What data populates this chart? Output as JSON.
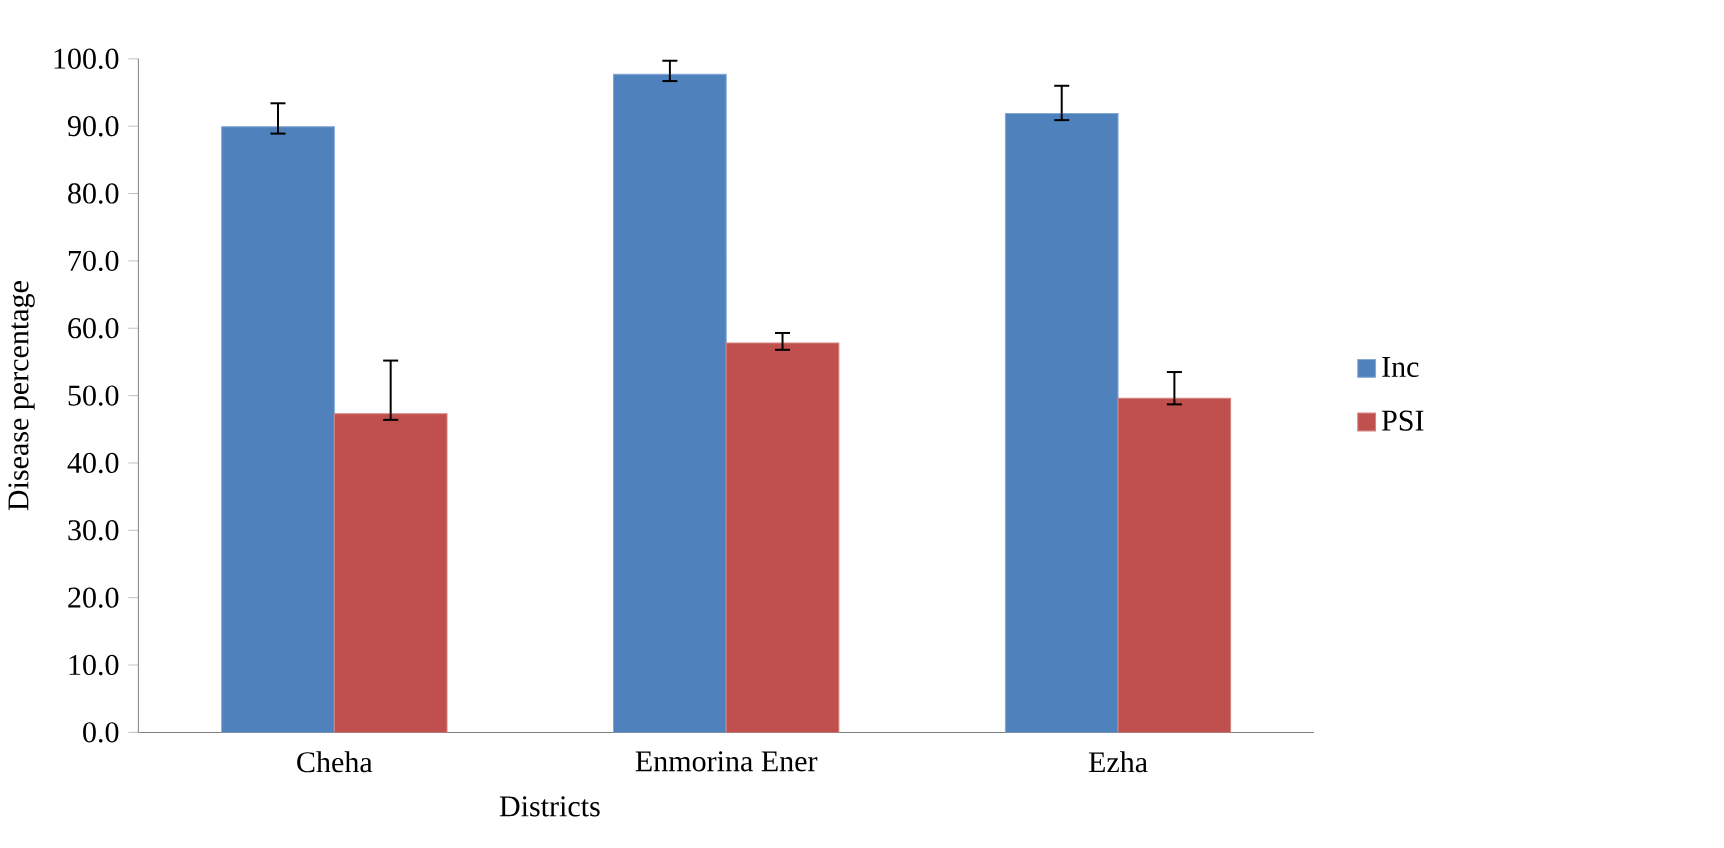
{
  "chart_data": {
    "type": "bar",
    "xlabel": "Districts",
    "ylabel": "Disease percentage",
    "categories": [
      "Cheha",
      "Enmorina Ener",
      "Ezha"
    ],
    "series": [
      {
        "name": "Inc",
        "color": "#4f81bd",
        "values": [
          89.9,
          97.7,
          91.9
        ],
        "errors": [
          [
            88.9,
            93.4
          ],
          [
            96.7,
            99.7
          ],
          [
            90.9,
            96.0
          ]
        ]
      },
      {
        "name": "PSI",
        "color": "#c0504d",
        "values": [
          47.3,
          57.8,
          49.6
        ],
        "errors": [
          [
            46.4,
            55.2
          ],
          [
            56.8,
            59.3
          ],
          [
            48.7,
            53.5
          ]
        ]
      }
    ],
    "ylim": [
      0,
      100
    ],
    "yticks": [
      {
        "value": 0,
        "label": "0.0"
      },
      {
        "value": 10,
        "label": "10.0"
      },
      {
        "value": 20,
        "label": "20.0"
      },
      {
        "value": 30,
        "label": "30.0"
      },
      {
        "value": 40,
        "label": "40.0"
      },
      {
        "value": 50,
        "label": "50.0"
      },
      {
        "value": 60,
        "label": "60.0"
      },
      {
        "value": 70,
        "label": "70.0"
      },
      {
        "value": 80,
        "label": "80.0"
      },
      {
        "value": 90,
        "label": "90.0"
      },
      {
        "value": 100,
        "label": "100.0"
      }
    ],
    "grid": false,
    "legend": "right"
  }
}
